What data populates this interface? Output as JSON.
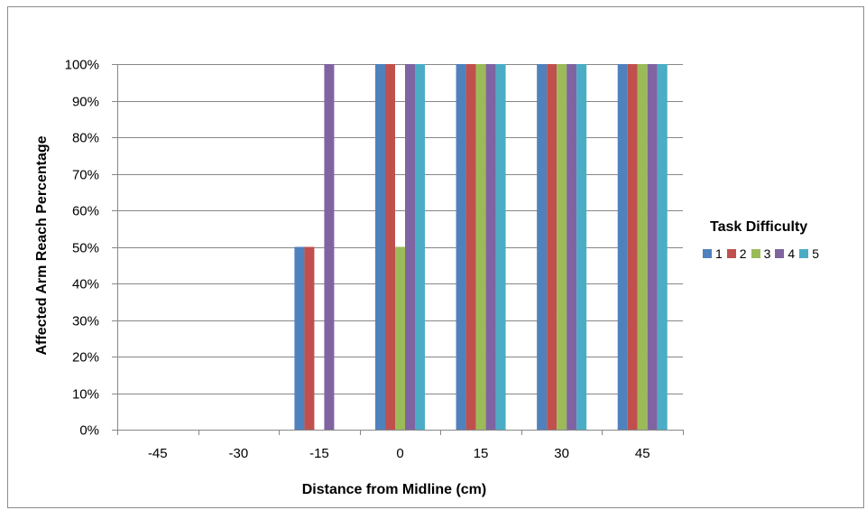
{
  "chart_data": {
    "type": "bar",
    "categories": [
      "-45",
      "-30",
      "-15",
      "0",
      "15",
      "30",
      "45"
    ],
    "xlabel": "Distance from Midline (cm)",
    "ylabel": "Affected Arm Reach Percentage",
    "ylim": [
      0,
      100
    ],
    "yticks": [
      "0%",
      "10%",
      "20%",
      "30%",
      "40%",
      "50%",
      "60%",
      "70%",
      "80%",
      "90%",
      "100%"
    ],
    "grid": "horizontal",
    "legend": {
      "title": "Task Difficulty",
      "placement": "right"
    },
    "series": [
      {
        "name": "1",
        "color": "#4F81BD",
        "values": [
          0,
          0,
          50,
          100,
          100,
          100,
          100
        ]
      },
      {
        "name": "2",
        "color": "#C0504D",
        "values": [
          0,
          0,
          50,
          100,
          100,
          100,
          100
        ]
      },
      {
        "name": "3",
        "color": "#9BBB59",
        "values": [
          0,
          0,
          0,
          50,
          100,
          100,
          100
        ]
      },
      {
        "name": "4",
        "color": "#8064A2",
        "values": [
          0,
          0,
          100,
          100,
          100,
          100,
          100
        ]
      },
      {
        "name": "5",
        "color": "#4BACC6",
        "values": [
          0,
          0,
          0,
          100,
          100,
          100,
          100
        ]
      }
    ]
  }
}
